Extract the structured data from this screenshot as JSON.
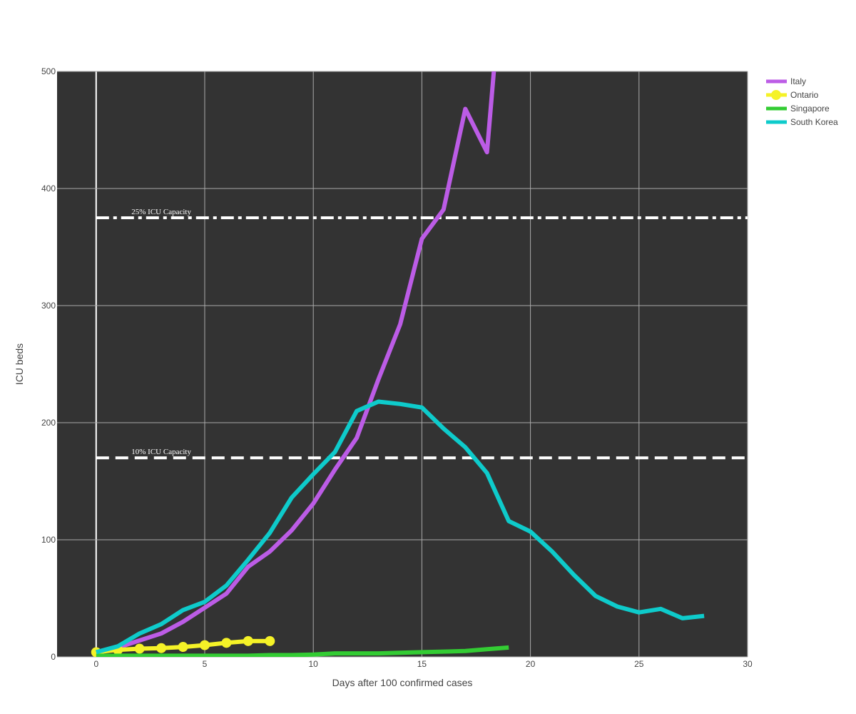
{
  "chart_data": {
    "type": "line",
    "title": "",
    "xlabel": "Days after 100 confirmed cases",
    "ylabel": "ICU beds",
    "xlim": [
      -1.8,
      30
    ],
    "ylim": [
      0,
      500
    ],
    "xticks": [
      0,
      5,
      10,
      15,
      20,
      25,
      30
    ],
    "yticks": [
      0,
      100,
      200,
      300,
      400,
      500
    ],
    "grid": true,
    "plot_background": "#333333",
    "grid_color": "#aaaaaa",
    "legend_position": "top-right",
    "series": [
      {
        "name": "Italy",
        "color": "#bc5ce6",
        "marker": false,
        "x": [
          0,
          1,
          2,
          3,
          4,
          5,
          6,
          7,
          8,
          9,
          10,
          11,
          12,
          13,
          14,
          15,
          16,
          17,
          18,
          19
        ],
        "y": [
          3,
          8,
          14,
          20,
          30,
          42,
          54,
          77,
          90,
          108,
          131,
          160,
          187,
          237,
          284,
          357,
          382,
          468,
          431,
          650
        ]
      },
      {
        "name": "Ontario",
        "color": "#f5f227",
        "marker": true,
        "x": [
          0,
          1,
          2,
          3,
          4,
          5,
          6,
          7,
          8
        ],
        "y": [
          4,
          6,
          7,
          7.5,
          8.5,
          10,
          12,
          13.5,
          13.5
        ]
      },
      {
        "name": "Singapore",
        "color": "#33cc33",
        "marker": false,
        "x": [
          0,
          1,
          2,
          3,
          4,
          5,
          6,
          7,
          8,
          9,
          10,
          11,
          12,
          13,
          14,
          15,
          16,
          17,
          18,
          19
        ],
        "y": [
          1,
          1,
          1,
          1,
          1,
          1,
          1,
          1,
          1.5,
          1.5,
          2,
          3,
          3,
          3,
          3.5,
          4,
          4.5,
          5,
          6.5,
          8
        ]
      },
      {
        "name": "South Korea",
        "color": "#0ecbcb",
        "marker": false,
        "x": [
          0,
          1,
          2,
          3,
          4,
          5,
          6,
          7,
          8,
          9,
          10,
          11,
          12,
          13,
          14,
          15,
          16,
          17,
          18,
          19,
          20,
          21,
          22,
          23,
          24,
          25,
          26,
          27,
          28
        ],
        "y": [
          4,
          9,
          20,
          28,
          40,
          47,
          61,
          83,
          106,
          136,
          156,
          175,
          210,
          218,
          216,
          213,
          195,
          179,
          157,
          116,
          107,
          90,
          70,
          52,
          43,
          38,
          41,
          33,
          35
        ]
      }
    ],
    "annotations": [
      {
        "text": "25% ICU Capacity",
        "y": 375,
        "x_from": 0,
        "x_to": 30,
        "style": "dashdot",
        "color": "#ffffff",
        "label_x": 3
      },
      {
        "text": "10% ICU Capacity",
        "y": 170,
        "x_from": 0,
        "x_to": 30,
        "style": "dash",
        "color": "#ffffff",
        "label_x": 3
      }
    ]
  }
}
